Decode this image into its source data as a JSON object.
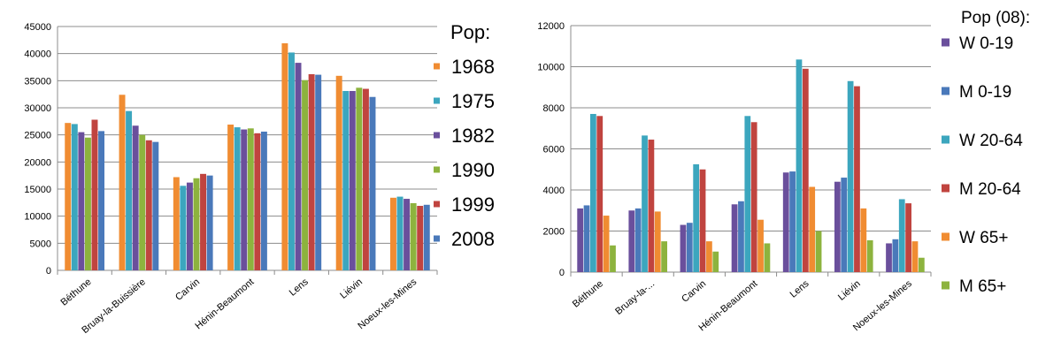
{
  "chart_data": [
    {
      "type": "bar",
      "title": "",
      "xlabel": "",
      "ylabel": "",
      "ylim": [
        0,
        45000
      ],
      "yticks": [
        "0",
        "5000",
        "10000",
        "15000",
        "20000",
        "25000",
        "30000",
        "35000",
        "40000",
        "45000"
      ],
      "grid": true,
      "legend_title": "Pop:",
      "legend_position": "right",
      "categories": [
        "Béthune",
        "Bruay-la-Buissière",
        "Carvin",
        "Hénin-Beaumont",
        "Lens",
        "Liévin",
        "Noeux-les-Mines"
      ],
      "series": [
        {
          "name": "1968",
          "color": "#F08C32",
          "values": [
            27200,
            32400,
            17200,
            26900,
            41900,
            35900,
            13400
          ]
        },
        {
          "name": "1975",
          "color": "#3CA6BE",
          "values": [
            27000,
            29400,
            15600,
            26400,
            40200,
            33100,
            13600
          ]
        },
        {
          "name": "1982",
          "color": "#6A4F9C",
          "values": [
            25500,
            26700,
            16200,
            26000,
            38300,
            33100,
            13200
          ]
        },
        {
          "name": "1990",
          "color": "#8DB33E",
          "values": [
            24500,
            25000,
            17000,
            26200,
            35100,
            33700,
            12400
          ]
        },
        {
          "name": "1999",
          "color": "#C0443F",
          "values": [
            27800,
            24000,
            17800,
            25300,
            36200,
            33500,
            11900
          ]
        },
        {
          "name": "2008",
          "color": "#4A79BA",
          "values": [
            25700,
            23700,
            17500,
            25600,
            36100,
            32000,
            12100
          ]
        }
      ]
    },
    {
      "type": "bar",
      "title": "",
      "xlabel": "",
      "ylabel": "",
      "ylim": [
        0,
        12000
      ],
      "yticks": [
        "0",
        "2000",
        "4000",
        "6000",
        "8000",
        "10000",
        "12000"
      ],
      "grid": true,
      "legend_title": "Pop (08):",
      "legend_position": "right",
      "categories": [
        "Béthune",
        "Bruay-la-...",
        "Carvin",
        "Hénin-Beaumont",
        "Lens",
        "Liévin",
        "Noeux-les-Mines"
      ],
      "series": [
        {
          "name": "W 0-19",
          "color": "#6A4F9C",
          "values": [
            3100,
            3000,
            2300,
            3300,
            4850,
            4400,
            1400
          ]
        },
        {
          "name": "M 0-19",
          "color": "#4A79BA",
          "values": [
            3250,
            3100,
            2400,
            3450,
            4900,
            4600,
            1600
          ]
        },
        {
          "name": "W 20-64",
          "color": "#3CA6BE",
          "values": [
            7700,
            6650,
            5250,
            7600,
            10350,
            9300,
            3550
          ]
        },
        {
          "name": "M 20-64",
          "color": "#C0443F",
          "values": [
            7600,
            6450,
            5000,
            7300,
            9900,
            9050,
            3350
          ]
        },
        {
          "name": "W 65+",
          "color": "#F08C32",
          "values": [
            2750,
            2950,
            1500,
            2550,
            4150,
            3100,
            1500
          ]
        },
        {
          "name": "M 65+",
          "color": "#8DB33E",
          "values": [
            1300,
            1500,
            1000,
            1400,
            2000,
            1550,
            700
          ]
        }
      ]
    }
  ]
}
